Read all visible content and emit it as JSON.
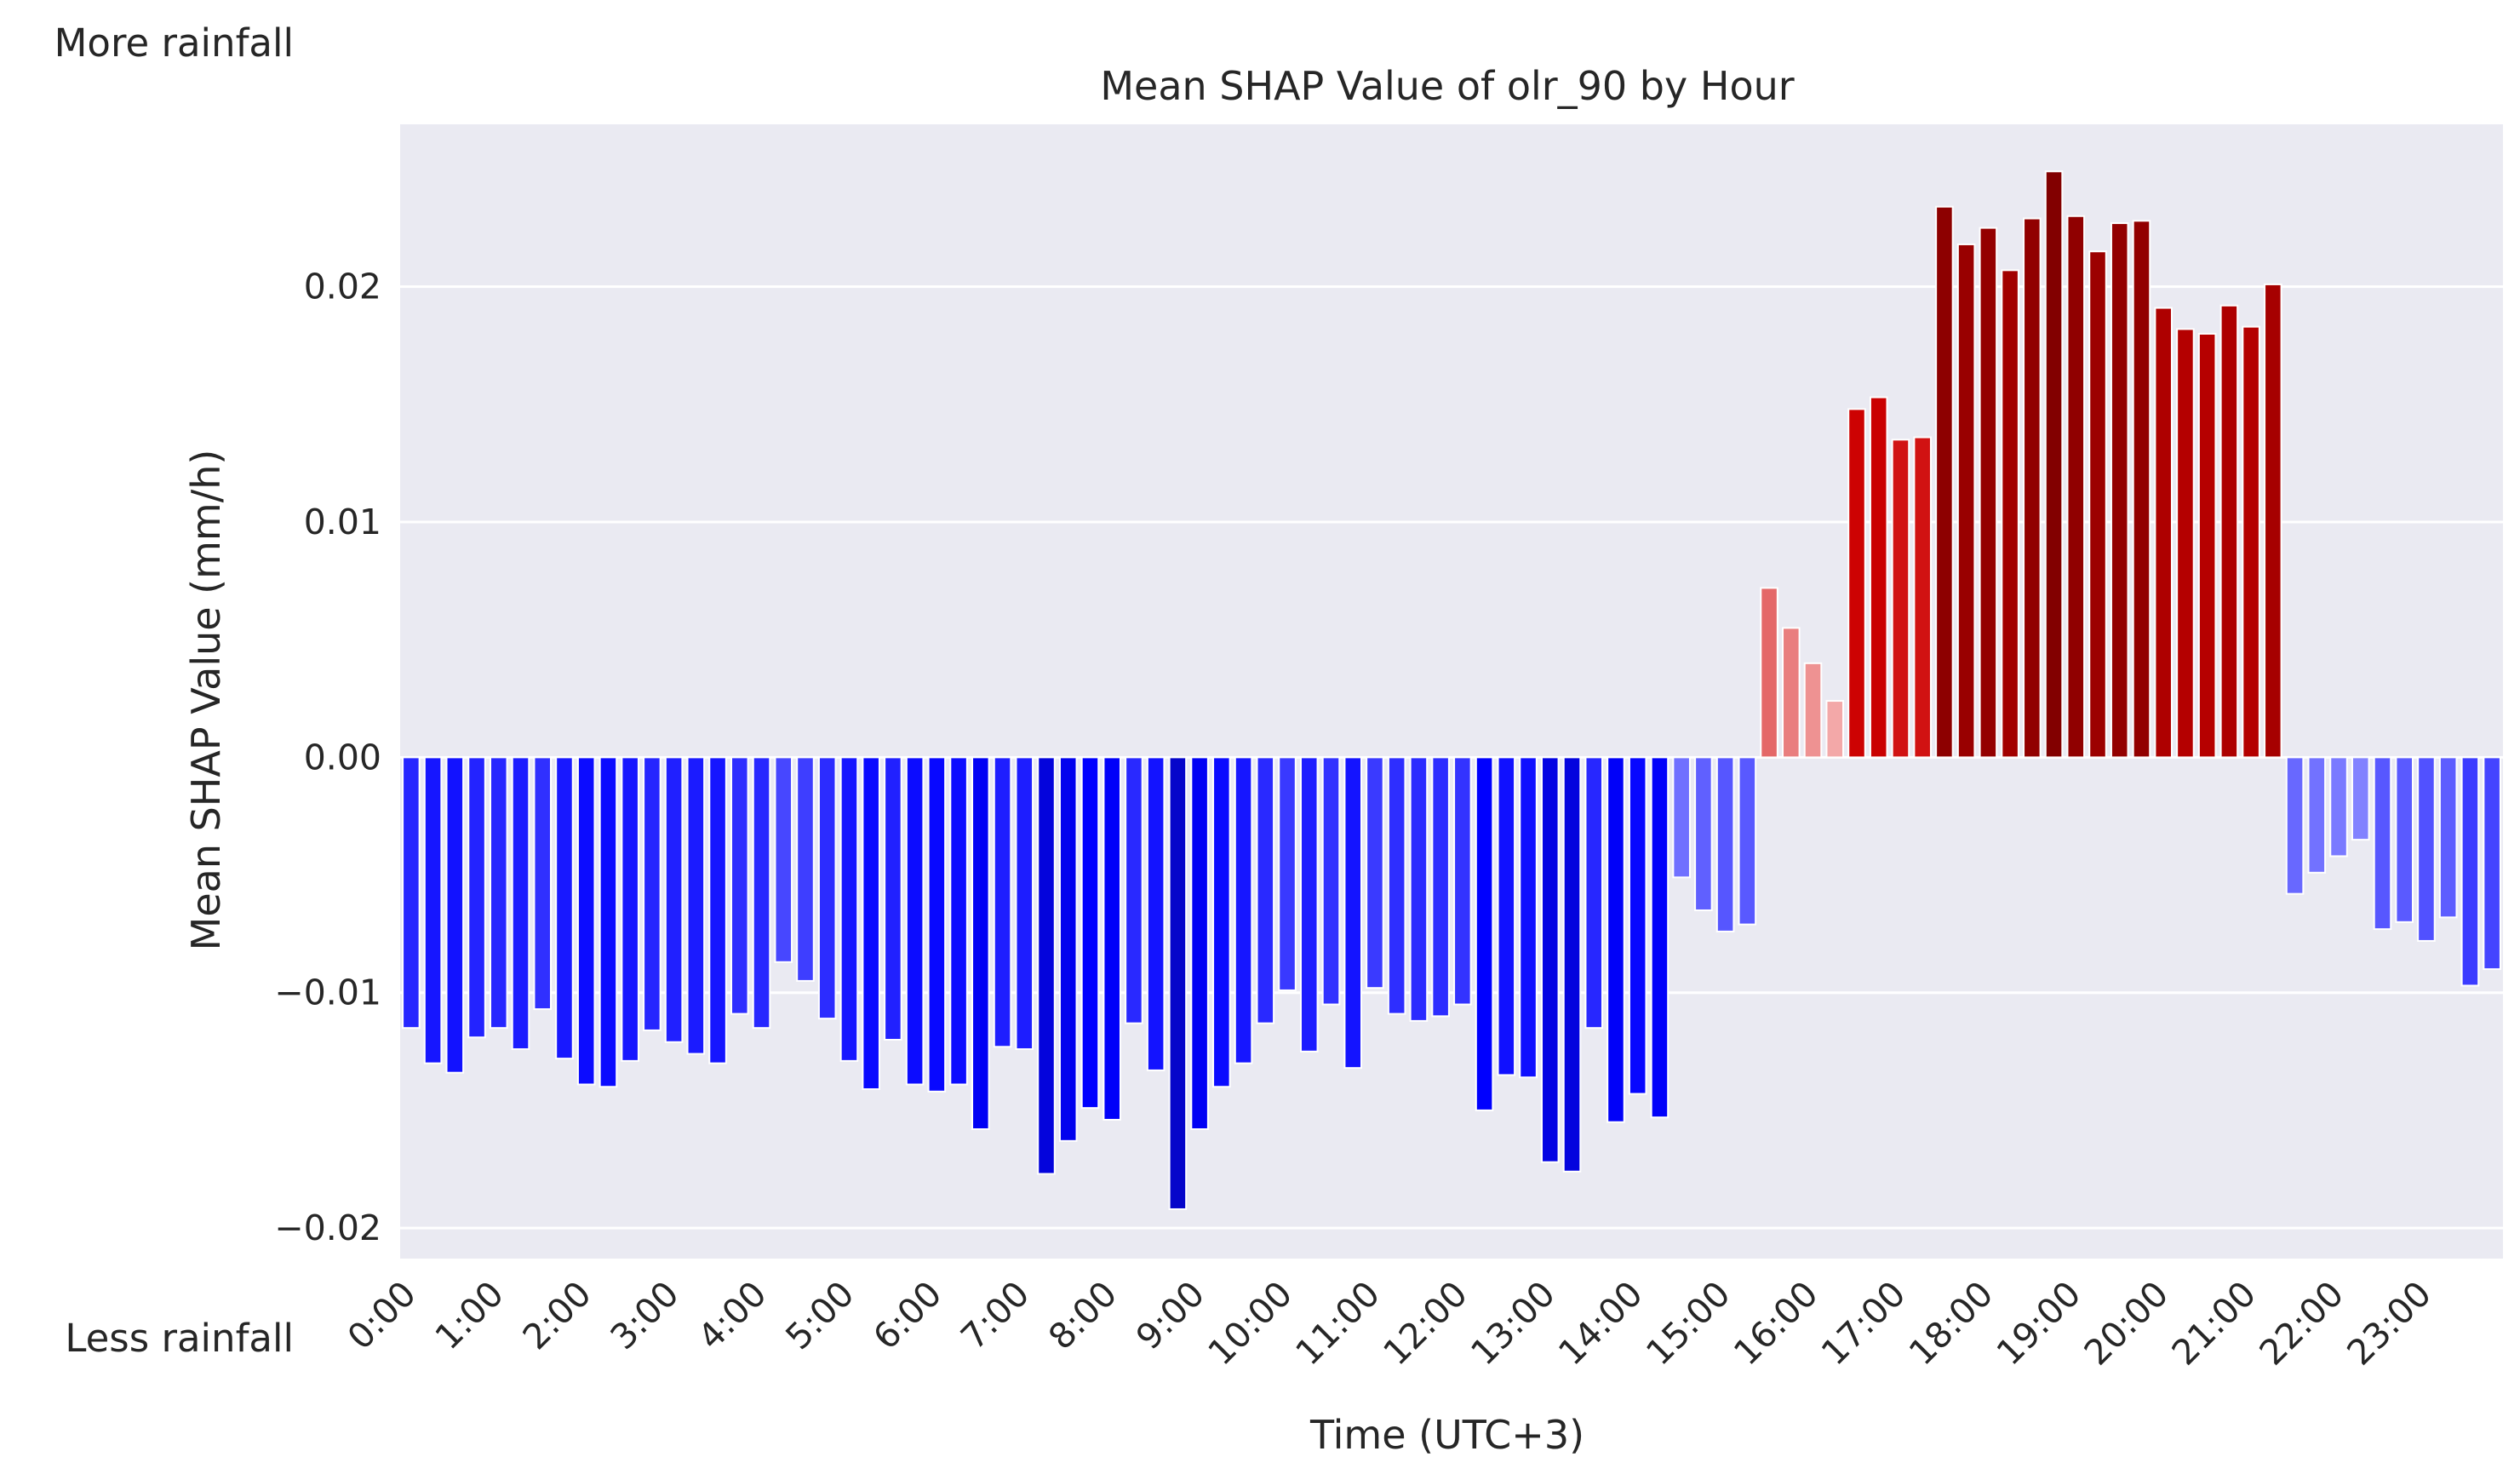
{
  "chart_data": {
    "type": "bar",
    "title": "Mean SHAP Value of olr_90 by Hour",
    "xlabel": "Time (UTC+3)",
    "ylabel": "Mean SHAP Value (mm/h)",
    "annotations": {
      "top": "More rainfall",
      "bottom": "Less rainfall"
    },
    "x_tick_labels": [
      "0:00",
      "1:00",
      "2:00",
      "3:00",
      "4:00",
      "5:00",
      "6:00",
      "7:00",
      "8:00",
      "9:00",
      "10:00",
      "11:00",
      "12:00",
      "13:00",
      "14:00",
      "15:00",
      "16:00",
      "17:00",
      "18:00",
      "19:00",
      "20:00",
      "21:00",
      "22:00",
      "23:00"
    ],
    "bars_per_hour": 4,
    "y_ticks": [
      -0.02,
      -0.01,
      0.0,
      0.01,
      0.02
    ],
    "y_tick_labels": [
      "−0.02",
      "−0.01",
      "0.00",
      "0.01",
      "0.02"
    ],
    "ylim": [
      -0.0213,
      0.0269
    ],
    "grid": true,
    "background": "#eaeaf2",
    "colors": {
      "negative": "#0000ff",
      "positive": "#cc0000",
      "gradient": "intensity scales with magnitude"
    },
    "values": [
      -0.0115,
      -0.013,
      -0.0134,
      -0.0119,
      -0.0115,
      -0.0124,
      -0.0107,
      -0.0128,
      -0.0139,
      -0.014,
      -0.0129,
      -0.0116,
      -0.0121,
      -0.0126,
      -0.013,
      -0.0109,
      -0.0115,
      -0.0087,
      -0.0095,
      -0.0111,
      -0.0129,
      -0.0141,
      -0.012,
      -0.0139,
      -0.0142,
      -0.0139,
      -0.0158,
      -0.0123,
      -0.0124,
      -0.0177,
      -0.0163,
      -0.0149,
      -0.0154,
      -0.0113,
      -0.0133,
      -0.0192,
      -0.0158,
      -0.014,
      -0.013,
      -0.0113,
      -0.0099,
      -0.0125,
      -0.0105,
      -0.0132,
      -0.0098,
      -0.0109,
      -0.0112,
      -0.011,
      -0.0105,
      -0.015,
      -0.0135,
      -0.0136,
      -0.0172,
      -0.0176,
      -0.0115,
      -0.0155,
      -0.0143,
      -0.0153,
      -0.0051,
      -0.0065,
      -0.0074,
      -0.0071,
      0.0072,
      0.0055,
      0.004,
      0.0024,
      0.0148,
      0.0153,
      0.0135,
      0.0136,
      0.0234,
      0.0218,
      0.0225,
      0.0207,
      0.0229,
      0.0249,
      0.023,
      0.0215,
      0.0227,
      0.0228,
      0.0191,
      0.0182,
      0.018,
      0.0192,
      0.0183,
      0.0201,
      -0.0058,
      -0.0049,
      -0.0042,
      -0.0035,
      -0.0073,
      -0.007,
      -0.0078,
      -0.0068,
      -0.0097,
      -0.009
    ]
  }
}
